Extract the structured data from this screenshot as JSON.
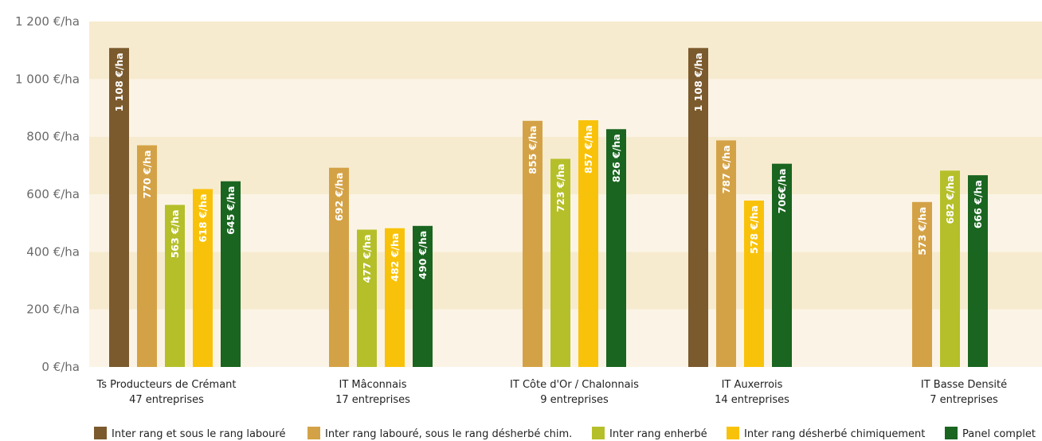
{
  "chart_data": {
    "type": "bar",
    "ylim": [
      0,
      1200
    ],
    "y_ticks": [
      {
        "value": 0,
        "label": "0 €/ha"
      },
      {
        "value": 200,
        "label": "200 €/ha"
      },
      {
        "value": 400,
        "label": "400 €/ha"
      },
      {
        "value": 600,
        "label": "600 €/ha"
      },
      {
        "value": 800,
        "label": "800 €/ha"
      },
      {
        "value": 1000,
        "label": "1 000 €/ha"
      },
      {
        "value": 1200,
        "label": "1 200 €/ha"
      }
    ],
    "categories": [
      {
        "name": "Ts Producteurs de Crémant",
        "sub": "47 entreprises"
      },
      {
        "name": "IT Mâconnais",
        "sub": "17 entreprises"
      },
      {
        "name": "IT Côte d'Or / Chalonnais",
        "sub": "9 entreprises"
      },
      {
        "name": "IT Auxerrois",
        "sub": "14 entreprises"
      },
      {
        "name": "IT Basse Densité",
        "sub": "7 entreprises"
      }
    ],
    "series": [
      {
        "name": "Inter rang et sous le rang labouré",
        "color": "#7b5a2e",
        "values": [
          1108,
          null,
          null,
          1108,
          null
        ],
        "labels": [
          "1 108 €/ha",
          null,
          null,
          "1 108 €/ha",
          null
        ]
      },
      {
        "name": "Inter rang labouré, sous le rang désherbé chim.",
        "color": "#d4a246",
        "values": [
          770,
          692,
          855,
          787,
          573
        ],
        "labels": [
          "770 €/ha",
          "692 €/ha",
          "855 €/ha",
          "787 €/ha",
          "573 €/ha"
        ]
      },
      {
        "name": "Inter rang enherbé",
        "color": "#b5bf2a",
        "values": [
          563,
          477,
          723,
          null,
          682
        ],
        "labels": [
          "563 €/ha",
          "477 €/ha",
          "723 €/ha",
          null,
          "682 €/ha"
        ]
      },
      {
        "name": "Inter rang désherbé chimiquement",
        "color": "#f9c20a",
        "values": [
          618,
          482,
          857,
          578,
          null
        ],
        "labels": [
          "618 €/ha",
          "482 €/ha",
          "857 €/ha",
          "578 €/ha",
          null
        ]
      },
      {
        "name": "Panel complet",
        "color": "#1a6520",
        "values": [
          645,
          490,
          826,
          706,
          666
        ],
        "labels": [
          "645 €/ha",
          "490 €/ha",
          "826 €/ha",
          "706€/ha",
          "666 €/ha"
        ]
      }
    ],
    "grid": "alternating bands",
    "band_colors": [
      "#fbf4e6",
      "#f7ebcf"
    ],
    "legend": "bottom"
  }
}
